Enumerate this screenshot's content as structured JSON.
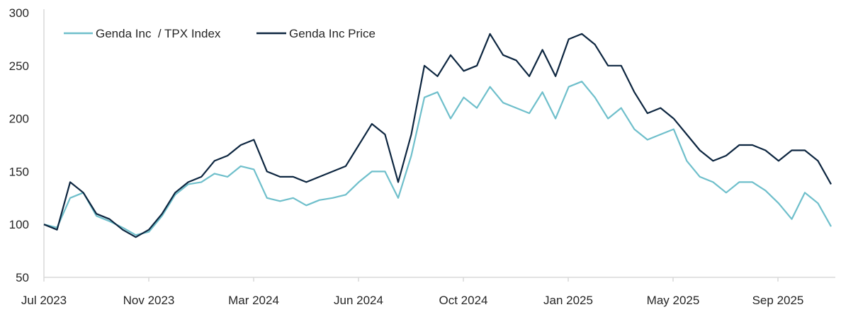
{
  "chart_data": {
    "type": "line",
    "title": "",
    "xlabel": "",
    "ylabel": "",
    "ylim": [
      50,
      300
    ],
    "yticks": [
      50,
      100,
      150,
      200,
      250,
      300
    ],
    "xtick_labels": [
      "Jul 2023",
      "Nov 2023",
      "Mar 2024",
      "Jun 2024",
      "Oct 2024",
      "Jan 2025",
      "May 2025",
      "Sep 2025"
    ],
    "grid": false,
    "legend_position": "top-left",
    "x_start": "2023-07-01",
    "x_step_days": 14,
    "series": [
      {
        "name": "Genda Inc  / TPX Index",
        "color": "#6fbfcb",
        "values": [
          100,
          97,
          125,
          130,
          108,
          103,
          97,
          90,
          93,
          108,
          128,
          138,
          140,
          148,
          145,
          155,
          152,
          125,
          122,
          125,
          118,
          123,
          125,
          128,
          140,
          150,
          150,
          125,
          165,
          220,
          225,
          200,
          220,
          210,
          230,
          215,
          210,
          205,
          225,
          200,
          230,
          235,
          220,
          200,
          210,
          190,
          180,
          185,
          190,
          160,
          145,
          140,
          130,
          140,
          140,
          132,
          120,
          105,
          130,
          120,
          98
        ]
      },
      {
        "name": "Genda Inc Price",
        "color": "#0d2640",
        "values": [
          100,
          95,
          140,
          130,
          110,
          105,
          95,
          88,
          95,
          110,
          130,
          140,
          145,
          160,
          165,
          175,
          180,
          150,
          145,
          145,
          140,
          145,
          150,
          155,
          175,
          195,
          185,
          140,
          185,
          250,
          240,
          260,
          245,
          250,
          280,
          260,
          255,
          240,
          265,
          240,
          275,
          280,
          270,
          250,
          250,
          225,
          205,
          210,
          200,
          185,
          170,
          160,
          165,
          175,
          175,
          170,
          160,
          170,
          170,
          160,
          138
        ]
      }
    ]
  }
}
